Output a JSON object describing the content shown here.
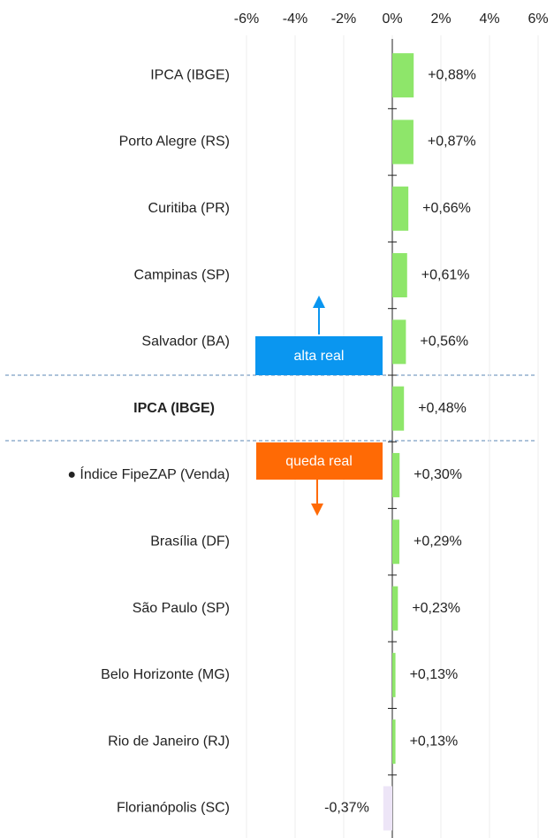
{
  "chart_data": {
    "type": "barh",
    "categories": [
      "IPCA (IBGE)",
      "Porto Alegre (RS)",
      "Curitiba (PR)",
      "Campinas (SP)",
      "Salvador (BA)",
      "IPCA (IBGE)",
      "● Índice FipeZAP (Venda)",
      "Brasília (DF)",
      "São Paulo (SP)",
      "Belo Horizonte (MG)",
      "Rio de Janeiro (RJ)",
      "Florianópolis (SC)"
    ],
    "values": [
      0.88,
      0.87,
      0.66,
      0.61,
      0.56,
      0.48,
      0.3,
      0.29,
      0.23,
      0.13,
      0.13,
      -0.37
    ],
    "value_labels": [
      "+0,88%",
      "+0,87%",
      "+0,66%",
      "+0,61%",
      "+0,56%",
      "+0,48%",
      "+0,30%",
      "+0,29%",
      "+0,23%",
      "+0,13%",
      "+0,13%",
      "-0,37%"
    ],
    "color": "#8ee66a",
    "negative_color": "#ede5f7",
    "highlight": 5,
    "xlim": [
      -6,
      6
    ],
    "xticks": [
      {
        "value": -6,
        "label": "-6%"
      },
      {
        "value": -4,
        "label": "-4%"
      },
      {
        "value": -2,
        "label": "-2%"
      },
      {
        "value": 0,
        "label": "0%"
      },
      {
        "value": 2,
        "label": "2%"
      },
      {
        "value": 4,
        "label": "4%"
      },
      {
        "value": 6,
        "label": "6%"
      }
    ],
    "grid": true,
    "annotations": {
      "up": {
        "text": "alta real",
        "color": "#0a96f0"
      },
      "down": {
        "text": "queda real",
        "color": "#ff6a05"
      }
    }
  }
}
